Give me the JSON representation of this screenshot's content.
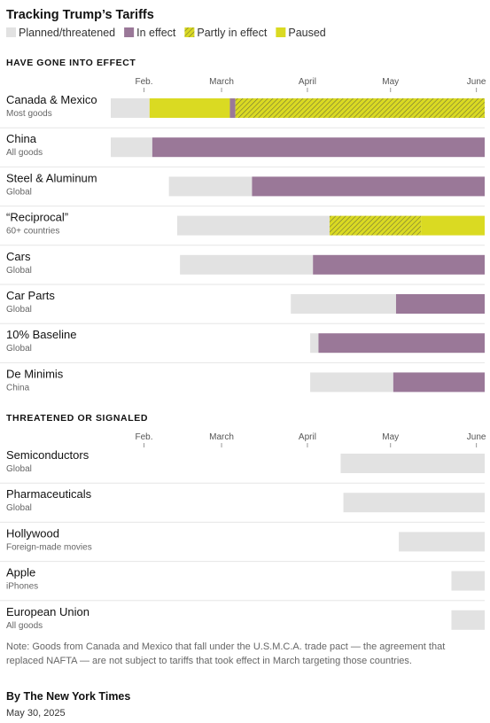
{
  "title": "Tracking Trump’s Tariffs",
  "colors": {
    "planned": "#e2e2e2",
    "in_effect": "#9a7898",
    "partly": "#b9bb2c",
    "paused": "#dada22",
    "divider": "#e6e6e6"
  },
  "legend": [
    {
      "key": "planned",
      "label": "Planned/threatened"
    },
    {
      "key": "in_effect",
      "label": "In effect"
    },
    {
      "key": "partly",
      "label": "Partly in effect"
    },
    {
      "key": "paused",
      "label": "Paused"
    }
  ],
  "chart_data": {
    "type": "bar",
    "subtype": "gantt-timeline",
    "x_axis": {
      "type": "date",
      "range": [
        "2025-01-20",
        "2025-06-04"
      ],
      "ticks": [
        {
          "date": "2025-02-01",
          "label": "Feb."
        },
        {
          "date": "2025-03-01",
          "label": "March"
        },
        {
          "date": "2025-04-01",
          "label": "April"
        },
        {
          "date": "2025-05-01",
          "label": "May"
        },
        {
          "date": "2025-06-01",
          "label": "June"
        }
      ]
    },
    "sections": [
      {
        "header": "HAVE GONE INTO EFFECT",
        "rows": [
          {
            "name": "Canada & Mexico",
            "sub": "Most goods",
            "segments": [
              {
                "start": "2025-01-20",
                "end": "2025-02-03",
                "status": "planned"
              },
              {
                "start": "2025-02-03",
                "end": "2025-03-04",
                "status": "paused"
              },
              {
                "start": "2025-03-04",
                "end": "2025-03-06",
                "status": "in_effect"
              },
              {
                "start": "2025-03-06",
                "end": "2025-06-04",
                "status": "partly"
              }
            ]
          },
          {
            "name": "China",
            "sub": "All goods",
            "segments": [
              {
                "start": "2025-01-20",
                "end": "2025-02-04",
                "status": "planned"
              },
              {
                "start": "2025-02-04",
                "end": "2025-06-04",
                "status": "in_effect"
              }
            ]
          },
          {
            "name": "Steel & Aluminum",
            "sub": "Global",
            "segments": [
              {
                "start": "2025-02-10",
                "end": "2025-03-12",
                "status": "planned"
              },
              {
                "start": "2025-03-12",
                "end": "2025-06-04",
                "status": "in_effect"
              }
            ]
          },
          {
            "name": "“Reciprocal”",
            "sub": "60+ countries",
            "segments": [
              {
                "start": "2025-02-13",
                "end": "2025-04-09",
                "status": "planned"
              },
              {
                "start": "2025-04-09",
                "end": "2025-05-12",
                "status": "partly"
              },
              {
                "start": "2025-05-12",
                "end": "2025-06-04",
                "status": "paused"
              }
            ]
          },
          {
            "name": "Cars",
            "sub": "Global",
            "segments": [
              {
                "start": "2025-02-14",
                "end": "2025-04-03",
                "status": "planned"
              },
              {
                "start": "2025-04-03",
                "end": "2025-06-04",
                "status": "in_effect"
              }
            ]
          },
          {
            "name": "Car Parts",
            "sub": "Global",
            "segments": [
              {
                "start": "2025-03-26",
                "end": "2025-05-03",
                "status": "planned"
              },
              {
                "start": "2025-05-03",
                "end": "2025-06-04",
                "status": "in_effect"
              }
            ]
          },
          {
            "name": "10% Baseline",
            "sub": "Global",
            "segments": [
              {
                "start": "2025-04-02",
                "end": "2025-04-05",
                "status": "planned"
              },
              {
                "start": "2025-04-05",
                "end": "2025-06-04",
                "status": "in_effect"
              }
            ]
          },
          {
            "name": "De Minimis",
            "sub": "China",
            "segments": [
              {
                "start": "2025-04-02",
                "end": "2025-05-02",
                "status": "planned"
              },
              {
                "start": "2025-05-02",
                "end": "2025-06-04",
                "status": "in_effect"
              }
            ]
          }
        ]
      },
      {
        "header": "THREATENED OR SIGNALED",
        "rows": [
          {
            "name": "Semiconductors",
            "sub": "Global",
            "segments": [
              {
                "start": "2025-04-13",
                "end": "2025-06-04",
                "status": "planned"
              }
            ]
          },
          {
            "name": "Pharmaceuticals",
            "sub": "Global",
            "segments": [
              {
                "start": "2025-04-14",
                "end": "2025-06-04",
                "status": "planned"
              }
            ]
          },
          {
            "name": "Hollywood",
            "sub": "Foreign-made movies",
            "segments": [
              {
                "start": "2025-05-04",
                "end": "2025-06-04",
                "status": "planned"
              }
            ]
          },
          {
            "name": "Apple",
            "sub": "iPhones",
            "segments": [
              {
                "start": "2025-05-23",
                "end": "2025-06-04",
                "status": "planned"
              }
            ]
          },
          {
            "name": "European Union",
            "sub": "All goods",
            "segments": [
              {
                "start": "2025-05-23",
                "end": "2025-06-04",
                "status": "planned"
              }
            ]
          }
        ]
      }
    ]
  },
  "note": "Note: Goods from Canada and Mexico that fall under the U.S.M.C.A. trade pact — the agreement that replaced NAFTA — are not subject to tariffs that took effect in March targeting those countries.",
  "byline": "By The New York Times",
  "date": "May 30, 2025"
}
